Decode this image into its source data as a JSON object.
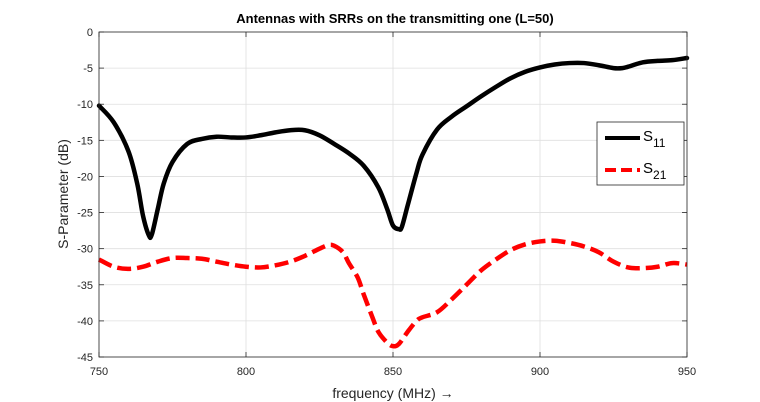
{
  "chart_data": {
    "type": "line",
    "title": "Antennas with SRRs on the transmitting one (L=50)",
    "xlabel": "frequency (MHz) →",
    "ylabel": "S-Parameter (dB)",
    "xlim": [
      750,
      950
    ],
    "ylim": [
      -45,
      0
    ],
    "xticks": [
      750,
      800,
      850,
      900,
      950
    ],
    "yticks": [
      0,
      -5,
      -10,
      -15,
      -20,
      -25,
      -30,
      -35,
      -40,
      -45
    ],
    "grid": true,
    "legend": {
      "placement": "right",
      "entries": [
        {
          "main": "S",
          "sub": "11"
        },
        {
          "main": "S",
          "sub": "21"
        }
      ]
    },
    "series": [
      {
        "name": "S11",
        "color": "#000000",
        "style": "solid",
        "x": [
          750,
          755,
          760,
          763,
          765,
          767,
          768,
          770,
          772,
          775,
          780,
          785,
          790,
          795,
          800,
          805,
          810,
          815,
          820,
          825,
          830,
          835,
          840,
          845,
          848,
          850,
          852,
          853,
          855,
          858,
          860,
          865,
          870,
          875,
          880,
          885,
          890,
          895,
          900,
          905,
          910,
          915,
          920,
          925,
          928,
          930,
          935,
          940,
          945,
          950
        ],
        "y": [
          -10.2,
          -12.5,
          -16.5,
          -21,
          -25.5,
          -28.2,
          -28.0,
          -24.5,
          -21,
          -18,
          -15.5,
          -14.8,
          -14.5,
          -14.6,
          -14.6,
          -14.3,
          -13.9,
          -13.6,
          -13.6,
          -14.3,
          -15.5,
          -16.8,
          -18.5,
          -21.5,
          -24.5,
          -26.8,
          -27.3,
          -27.0,
          -24,
          -19.5,
          -17,
          -13.5,
          -11.7,
          -10.3,
          -8.9,
          -7.6,
          -6.4,
          -5.5,
          -4.9,
          -4.5,
          -4.3,
          -4.3,
          -4.6,
          -5.0,
          -5.0,
          -4.8,
          -4.2,
          -4.0,
          -3.9,
          -3.6
        ]
      },
      {
        "name": "S21",
        "color": "#ff0000",
        "style": "dashed",
        "x": [
          750,
          755,
          760,
          765,
          770,
          775,
          780,
          785,
          790,
          795,
          800,
          805,
          810,
          815,
          820,
          825,
          828,
          830,
          833,
          835,
          838,
          840,
          843,
          845,
          848,
          850,
          852,
          855,
          858,
          860,
          865,
          870,
          875,
          880,
          885,
          890,
          895,
          900,
          905,
          910,
          915,
          920,
          925,
          930,
          935,
          940,
          945,
          950
        ],
        "y": [
          -31.5,
          -32.5,
          -32.8,
          -32.5,
          -31.8,
          -31.3,
          -31.3,
          -31.4,
          -31.8,
          -32.2,
          -32.5,
          -32.6,
          -32.3,
          -31.8,
          -31.0,
          -30.0,
          -29.5,
          -29.6,
          -30.5,
          -32,
          -34,
          -36.3,
          -39.5,
          -41.5,
          -43,
          -43.5,
          -43.2,
          -41.5,
          -40,
          -39.5,
          -38.8,
          -37,
          -35,
          -33,
          -31.5,
          -30.2,
          -29.4,
          -29.0,
          -28.9,
          -29.2,
          -29.7,
          -30.5,
          -31.8,
          -32.6,
          -32.7,
          -32.5,
          -32.0,
          -32.2
        ]
      }
    ]
  }
}
